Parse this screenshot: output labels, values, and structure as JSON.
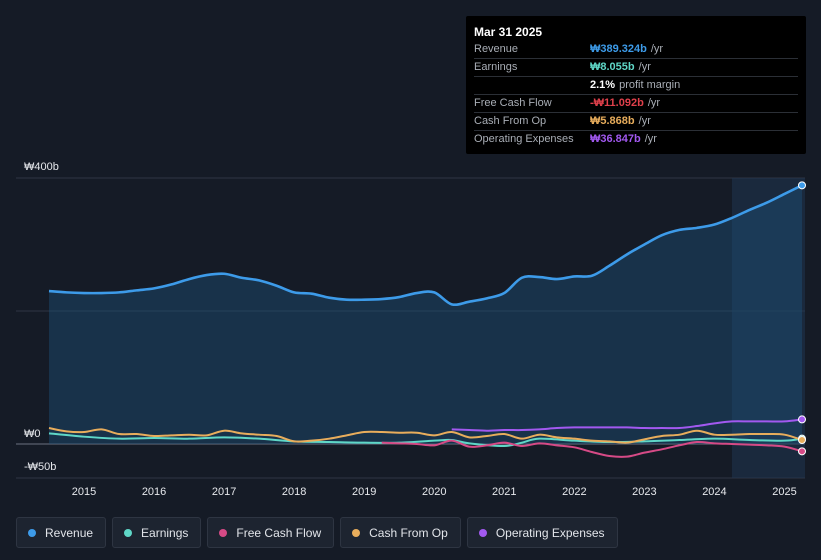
{
  "tooltip": {
    "date": "Mar 31 2025",
    "rows": [
      {
        "label": "Revenue",
        "value": "₩389.324b",
        "unit": "/yr",
        "color": "#3d9be9"
      },
      {
        "label": "Earnings",
        "value": "₩8.055b",
        "unit": "/yr",
        "color": "#5fd7c7"
      },
      {
        "label": "",
        "value": "2.1%",
        "unit": "profit margin",
        "color": "#ffffff"
      },
      {
        "label": "Free Cash Flow",
        "value": "-₩11.092b",
        "unit": "/yr",
        "color": "#e0404b"
      },
      {
        "label": "Cash From Op",
        "value": "₩5.868b",
        "unit": "/yr",
        "color": "#e8ad5c"
      },
      {
        "label": "Operating Expenses",
        "value": "₩36.847b",
        "unit": "/yr",
        "color": "#a259f0"
      }
    ]
  },
  "legend": [
    {
      "label": "Revenue",
      "color": "#3d9be9"
    },
    {
      "label": "Earnings",
      "color": "#5fd7c7"
    },
    {
      "label": "Free Cash Flow",
      "color": "#d64a86"
    },
    {
      "label": "Cash From Op",
      "color": "#e8ad5c"
    },
    {
      "label": "Operating Expenses",
      "color": "#a259f0"
    }
  ],
  "chart_data": {
    "type": "line",
    "title": "",
    "xlabel": "",
    "ylabel": "",
    "y_tick_labels": [
      "₩400b",
      "₩0",
      "-₩50b"
    ],
    "ylim": [
      -50,
      400
    ],
    "x_tick_labels": [
      "2015",
      "2016",
      "2017",
      "2018",
      "2019",
      "2020",
      "2021",
      "2022",
      "2023",
      "2024",
      "2025"
    ],
    "xlim": [
      2014.5,
      2025.25
    ],
    "grid": true,
    "legend_position": "bottom",
    "highlight_from": 2024.25,
    "series": [
      {
        "name": "Revenue",
        "color": "#3d9be9",
        "filled": true,
        "x": [
          2014.5,
          2014.75,
          2015.0,
          2015.25,
          2015.5,
          2015.75,
          2016.0,
          2016.25,
          2016.5,
          2016.75,
          2017.0,
          2017.25,
          2017.5,
          2017.75,
          2018.0,
          2018.25,
          2018.5,
          2018.75,
          2019.0,
          2019.25,
          2019.5,
          2019.75,
          2020.0,
          2020.25,
          2020.5,
          2020.75,
          2021.0,
          2021.25,
          2021.5,
          2021.75,
          2022.0,
          2022.25,
          2022.5,
          2022.75,
          2023.0,
          2023.25,
          2023.5,
          2023.75,
          2024.0,
          2024.25,
          2024.5,
          2024.75,
          2025.0,
          2025.25
        ],
        "values": [
          230,
          228,
          227,
          227,
          228,
          231,
          234,
          240,
          248,
          254,
          256,
          250,
          246,
          238,
          228,
          226,
          220,
          217,
          217,
          218,
          221,
          227,
          228,
          210,
          214,
          219,
          227,
          250,
          251,
          248,
          252,
          253,
          268,
          285,
          300,
          314,
          322,
          325,
          330,
          340,
          352,
          363,
          376,
          389
        ]
      },
      {
        "name": "Earnings",
        "color": "#5fd7c7",
        "x": [
          2014.5,
          2015.0,
          2015.5,
          2016.0,
          2016.5,
          2017.0,
          2017.5,
          2018.0,
          2018.5,
          2019.0,
          2019.5,
          2020.0,
          2020.25,
          2020.5,
          2021.0,
          2021.25,
          2021.5,
          2022.0,
          2022.5,
          2023.0,
          2023.5,
          2024.0,
          2024.5,
          2025.0,
          2025.25
        ],
        "values": [
          16,
          11,
          8,
          9,
          8,
          10,
          8,
          4,
          3,
          2,
          2,
          5,
          6,
          1,
          -3,
          2,
          8,
          5,
          3,
          4,
          6,
          8,
          6,
          5,
          8
        ]
      },
      {
        "name": "Free Cash Flow",
        "color": "#d64a86",
        "x": [
          2019.25,
          2019.5,
          2019.75,
          2020.0,
          2020.25,
          2020.5,
          2020.75,
          2021.0,
          2021.25,
          2021.5,
          2021.75,
          2022.0,
          2022.25,
          2022.5,
          2022.75,
          2023.0,
          2023.25,
          2023.5,
          2023.75,
          2024.0,
          2024.25,
          2024.5,
          2024.75,
          2025.0,
          2025.25
        ],
        "values": [
          2,
          1,
          0,
          -2,
          5,
          -4,
          -2,
          2,
          -3,
          1,
          -2,
          -5,
          -12,
          -18,
          -19,
          -13,
          -8,
          -2,
          3,
          1,
          0,
          -1,
          -2,
          -4,
          -11
        ]
      },
      {
        "name": "Cash From Op",
        "color": "#e8ad5c",
        "x": [
          2014.5,
          2014.75,
          2015.0,
          2015.25,
          2015.5,
          2015.75,
          2016.0,
          2016.25,
          2016.5,
          2016.75,
          2017.0,
          2017.25,
          2017.5,
          2017.75,
          2018.0,
          2018.25,
          2018.5,
          2018.75,
          2019.0,
          2019.25,
          2019.5,
          2019.75,
          2020.0,
          2020.25,
          2020.5,
          2020.75,
          2021.0,
          2021.25,
          2021.5,
          2021.75,
          2022.0,
          2022.25,
          2022.5,
          2022.75,
          2023.0,
          2023.25,
          2023.5,
          2023.75,
          2024.0,
          2024.25,
          2024.5,
          2024.75,
          2025.0,
          2025.25
        ],
        "values": [
          24,
          19,
          18,
          22,
          15,
          15,
          12,
          13,
          14,
          13,
          20,
          16,
          14,
          12,
          4,
          5,
          8,
          13,
          18,
          18,
          17,
          17,
          13,
          18,
          10,
          12,
          15,
          8,
          14,
          10,
          8,
          5,
          4,
          2,
          7,
          12,
          14,
          20,
          14,
          14,
          15,
          15,
          14,
          6
        ]
      },
      {
        "name": "Operating Expenses",
        "color": "#a259f0",
        "x": [
          2020.25,
          2020.5,
          2020.75,
          2021.0,
          2021.25,
          2021.5,
          2021.75,
          2022.0,
          2022.25,
          2022.5,
          2022.75,
          2023.0,
          2023.25,
          2023.5,
          2023.75,
          2024.0,
          2024.25,
          2024.5,
          2024.75,
          2025.0,
          2025.25
        ],
        "values": [
          22,
          21,
          20,
          21,
          21,
          22,
          24,
          25,
          25,
          25,
          25,
          24,
          24,
          24,
          27,
          31,
          34,
          34,
          34,
          34,
          37
        ]
      }
    ]
  }
}
